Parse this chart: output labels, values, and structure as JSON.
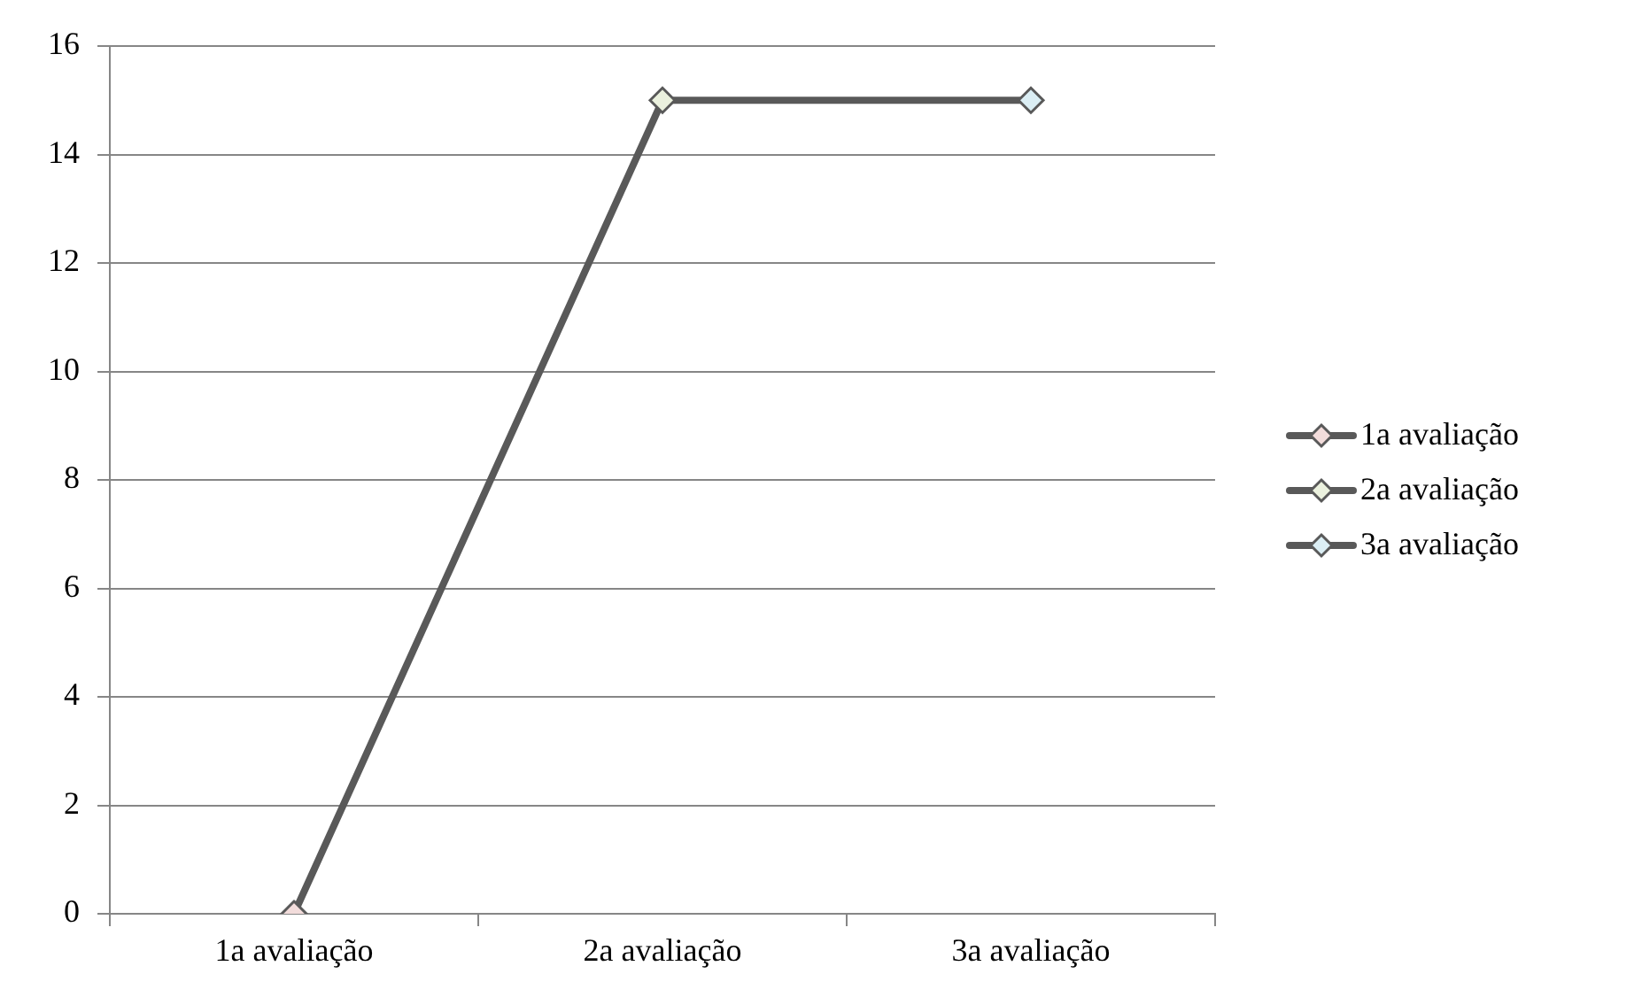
{
  "chart_data": {
    "type": "line",
    "categories": [
      "1a avaliação",
      "2a avaliação",
      "3a avaliação"
    ],
    "series": [
      {
        "color": "#595959",
        "values": [
          0,
          15,
          15
        ],
        "marker": "none"
      },
      {
        "name": "1a avaliação",
        "type": "scatter",
        "color": "#f2dcdb",
        "values": [
          0,
          null,
          null
        ]
      },
      {
        "name": "2a avaliação",
        "type": "scatter",
        "color": "#ebf1de",
        "values": [
          null,
          15,
          null
        ]
      },
      {
        "name": "3a avaliação",
        "type": "scatter",
        "color": "#dbeef4",
        "values": [
          null,
          null,
          15
        ]
      }
    ],
    "ylim": [
      0,
      16
    ],
    "yticks": [
      0,
      2,
      4,
      6,
      8,
      10,
      12,
      14,
      16
    ],
    "grid": "y",
    "legend": "right",
    "marker": "diamond",
    "line_style": "solid"
  }
}
